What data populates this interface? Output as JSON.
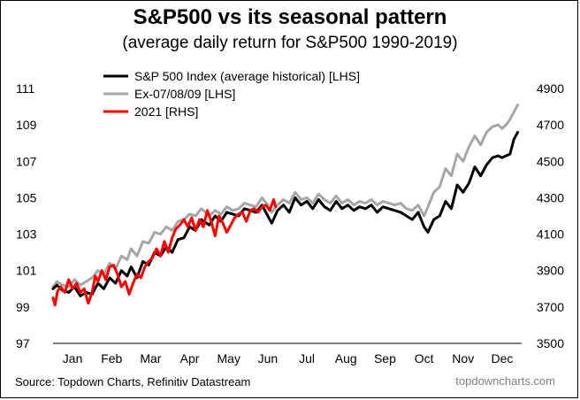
{
  "title": "S&P500 vs its seasonal pattern",
  "subtitle": "(average daily return for S&P500 1990-2019)",
  "source": "Source: Topdown Charts, Refinitiv Datastream",
  "brand": "topdowncharts.com",
  "chart_data": {
    "type": "line",
    "x_unit": "month",
    "x_ticks": [
      "Jan",
      "Feb",
      "Mar",
      "Apr",
      "May",
      "Jun",
      "Jul",
      "Aug",
      "Sep",
      "Oct",
      "Nov",
      "Dec"
    ],
    "xlim": [
      0,
      12
    ],
    "y_left": {
      "lim": [
        97,
        111
      ],
      "ticks": [
        97,
        99,
        101,
        103,
        105,
        107,
        109,
        111
      ]
    },
    "y_right": {
      "lim": [
        3500,
        4900
      ],
      "ticks": [
        3500,
        3700,
        3900,
        4100,
        4300,
        4500,
        4700,
        4900
      ]
    },
    "legend_position": "top-left",
    "grid": false,
    "series": [
      {
        "name": "S&P 500 Index (average historical) [LHS]",
        "axis": "left",
        "color": "#000000",
        "x": [
          0,
          0.1,
          0.25,
          0.4,
          0.55,
          0.7,
          0.85,
          1.0,
          1.15,
          1.3,
          1.45,
          1.6,
          1.75,
          1.9,
          2.0,
          2.15,
          2.3,
          2.45,
          2.6,
          2.75,
          2.9,
          3.05,
          3.2,
          3.35,
          3.5,
          3.65,
          3.8,
          4.0,
          4.15,
          4.3,
          4.45,
          4.6,
          4.75,
          4.9,
          5.05,
          5.2,
          5.35,
          5.5,
          5.6,
          5.75,
          5.9,
          6.05,
          6.2,
          6.35,
          6.5,
          6.65,
          6.8,
          6.95,
          7.1,
          7.25,
          7.4,
          7.55,
          7.7,
          7.85,
          8.0,
          8.15,
          8.3,
          8.45,
          8.6,
          8.75,
          8.9,
          9.05,
          9.2,
          9.35,
          9.5,
          9.6,
          9.75,
          9.9,
          10.05,
          10.2,
          10.35,
          10.5,
          10.65,
          10.8,
          10.95,
          11.1,
          11.25,
          11.4,
          11.5,
          11.6,
          11.7,
          11.8,
          11.9
        ],
        "values": [
          100.0,
          100.2,
          99.9,
          99.8,
          100.1,
          99.6,
          99.8,
          99.7,
          100.3,
          100.0,
          100.6,
          100.3,
          101.0,
          100.7,
          101.2,
          100.6,
          101.5,
          101.3,
          102.0,
          101.8,
          102.3,
          102.0,
          102.7,
          102.8,
          103.4,
          103.2,
          103.8,
          103.5,
          104.0,
          103.7,
          104.2,
          104.1,
          104.0,
          104.4,
          104.3,
          104.2,
          104.6,
          104.0,
          103.6,
          104.3,
          104.6,
          104.2,
          105.0,
          104.6,
          104.8,
          104.4,
          104.9,
          104.5,
          104.3,
          104.8,
          104.4,
          104.6,
          104.3,
          104.5,
          104.4,
          104.6,
          104.2,
          104.5,
          104.4,
          104.3,
          104.2,
          104.0,
          103.8,
          104.2,
          103.4,
          103.1,
          103.8,
          104.0,
          104.8,
          104.4,
          105.7,
          105.3,
          105.8,
          106.7,
          106.2,
          106.8,
          107.2,
          107.3,
          107.2,
          107.3,
          107.4,
          108.2,
          108.6
        ]
      },
      {
        "name": "Ex-07/08/09 [LHS]",
        "axis": "left",
        "color": "#a6a6a6",
        "x": [
          0,
          0.1,
          0.25,
          0.4,
          0.55,
          0.7,
          0.85,
          1.0,
          1.15,
          1.3,
          1.45,
          1.6,
          1.75,
          1.9,
          2.0,
          2.15,
          2.3,
          2.45,
          2.6,
          2.75,
          2.9,
          3.05,
          3.2,
          3.35,
          3.5,
          3.65,
          3.8,
          4.0,
          4.15,
          4.3,
          4.45,
          4.6,
          4.75,
          4.9,
          5.05,
          5.2,
          5.35,
          5.5,
          5.6,
          5.75,
          5.9,
          6.05,
          6.2,
          6.35,
          6.5,
          6.65,
          6.8,
          6.95,
          7.1,
          7.25,
          7.4,
          7.55,
          7.7,
          7.85,
          8.0,
          8.15,
          8.3,
          8.45,
          8.6,
          8.75,
          8.9,
          9.05,
          9.2,
          9.35,
          9.5,
          9.6,
          9.75,
          9.9,
          10.05,
          10.2,
          10.35,
          10.5,
          10.65,
          10.8,
          10.95,
          11.1,
          11.25,
          11.4,
          11.5,
          11.6,
          11.7,
          11.8,
          11.9
        ],
        "values": [
          100.1,
          100.4,
          100.2,
          100.1,
          100.5,
          100.2,
          100.4,
          100.6,
          101.0,
          100.8,
          101.4,
          101.1,
          101.8,
          101.6,
          102.2,
          101.8,
          102.6,
          102.5,
          103.1,
          103.0,
          103.4,
          103.2,
          103.7,
          103.8,
          104.1,
          104.0,
          104.4,
          104.0,
          104.3,
          104.1,
          104.5,
          104.3,
          104.4,
          104.7,
          104.6,
          104.5,
          105.0,
          104.6,
          104.2,
          104.6,
          104.9,
          104.7,
          105.3,
          104.9,
          105.0,
          104.7,
          105.2,
          104.9,
          104.7,
          105.1,
          104.7,
          104.9,
          104.6,
          104.8,
          104.7,
          104.9,
          104.6,
          104.8,
          104.7,
          104.6,
          104.7,
          104.4,
          104.3,
          104.6,
          104.0,
          104.5,
          105.3,
          105.6,
          106.6,
          106.2,
          107.4,
          107.0,
          107.8,
          108.4,
          107.9,
          108.6,
          108.9,
          109.0,
          108.8,
          109.0,
          109.3,
          109.7,
          110.1
        ]
      },
      {
        "name": "2021 [RHS]",
        "axis": "right",
        "color": "#ff0000",
        "x": [
          0,
          0.05,
          0.12,
          0.2,
          0.3,
          0.4,
          0.5,
          0.6,
          0.7,
          0.8,
          0.9,
          1.0,
          1.08,
          1.15,
          1.25,
          1.35,
          1.45,
          1.55,
          1.65,
          1.75,
          1.85,
          1.95,
          2.05,
          2.15,
          2.25,
          2.35,
          2.45,
          2.55,
          2.65,
          2.75,
          2.85,
          2.95,
          3.05,
          3.15,
          3.25,
          3.35,
          3.45,
          3.55,
          3.65,
          3.75,
          3.85,
          3.95,
          4.05,
          4.15,
          4.25,
          4.35,
          4.45,
          4.55,
          4.65,
          4.75,
          4.85,
          4.95,
          5.05,
          5.15,
          5.25,
          5.35,
          5.45,
          5.55,
          5.65,
          5.7
        ],
        "values": [
          3750,
          3710,
          3790,
          3810,
          3780,
          3850,
          3800,
          3830,
          3780,
          3800,
          3720,
          3780,
          3870,
          3840,
          3900,
          3850,
          3920,
          3930,
          3880,
          3810,
          3840,
          3770,
          3830,
          3880,
          3860,
          3920,
          3950,
          3970,
          4020,
          3980,
          4060,
          4000,
          4080,
          4130,
          4150,
          4180,
          4140,
          4190,
          4120,
          4180,
          4140,
          4230,
          4170,
          4090,
          4200,
          4160,
          4110,
          4150,
          4190,
          4210,
          4220,
          4170,
          4230,
          4240,
          4220,
          4250,
          4260,
          4230,
          4290,
          4250
        ]
      }
    ]
  }
}
